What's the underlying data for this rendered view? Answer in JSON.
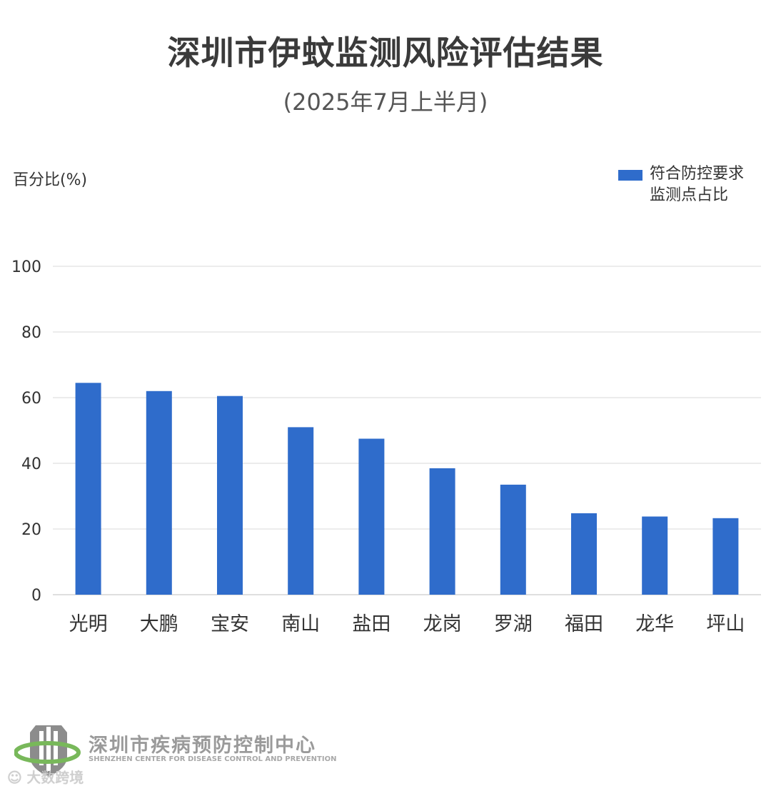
{
  "colors": {
    "bar": "#2f6ccb",
    "grid": "#d9d9d9",
    "logo_gray": "#8c8c8c",
    "logo_green": "#78b85a"
  },
  "header": {
    "title": "深圳市伊蚊监测风险评估结果",
    "subtitle": "(2025年7月上半月)"
  },
  "footer": {
    "org_name": "深圳市疾病预防控制中心",
    "org_name_en": "SHENZHEN CENTER FOR DISEASE CONTROL AND PREVENTION",
    "logo_icon": "shenzhen-cdc-shield-logo",
    "watermark": "大数跨境"
  },
  "chart_data": {
    "type": "bar",
    "title": "深圳市伊蚊监测风险评估结果",
    "subtitle": "(2025年7月上半月)",
    "xlabel": "",
    "ylabel": "百分比(%)",
    "ylim": [
      0,
      100
    ],
    "yticks": [
      0,
      20,
      40,
      60,
      80,
      100
    ],
    "grid": true,
    "legend_position": "top-right",
    "categories": [
      "光明",
      "大鹏",
      "宝安",
      "南山",
      "盐田",
      "龙岗",
      "罗湖",
      "福田",
      "龙华",
      "坪山"
    ],
    "series": [
      {
        "name": "符合防控要求监测点占比",
        "legend_lines": [
          "符合防控要求",
          "监测点占比"
        ],
        "values": [
          64.5,
          62,
          60.5,
          51,
          47.5,
          38.5,
          33.5,
          24.8,
          23.8,
          23.3
        ]
      }
    ]
  }
}
